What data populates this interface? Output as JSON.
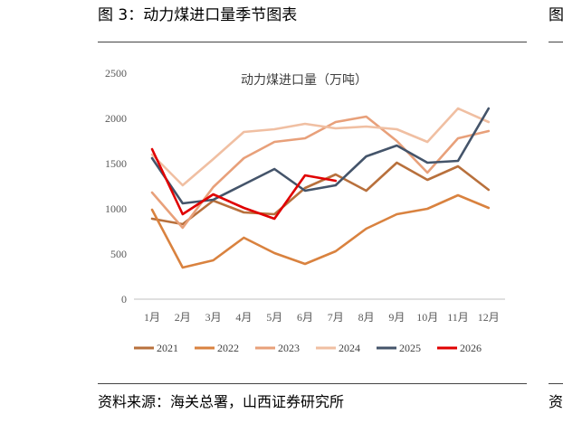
{
  "header": {
    "figure_title": "图 3：动力煤进口量季节图表",
    "next_figure_fragment": "图"
  },
  "footer": {
    "source": "资料来源：海关总署，山西证券研究所",
    "next_source_fragment": "资"
  },
  "chart_data": {
    "type": "line",
    "title": "动力煤进口量（万吨）",
    "categories": [
      "1月",
      "2月",
      "3月",
      "4月",
      "5月",
      "6月",
      "7月",
      "8月",
      "9月",
      "10月",
      "11月",
      "12月"
    ],
    "ylim": [
      0,
      2500
    ],
    "yticks": [
      0,
      500,
      1000,
      1500,
      2000,
      2500
    ],
    "grid": false,
    "legend_position": "bottom",
    "series": [
      {
        "name": "2021",
        "color": "#b8703c",
        "values": [
          890,
          830,
          1090,
          960,
          940,
          1230,
          1380,
          1200,
          1510,
          1320,
          1470,
          1210
        ]
      },
      {
        "name": "2022",
        "color": "#d9823f",
        "values": [
          990,
          350,
          430,
          680,
          510,
          390,
          530,
          780,
          940,
          1000,
          1150,
          1010
        ]
      },
      {
        "name": "2023",
        "color": "#e8a07a",
        "values": [
          1180,
          790,
          1240,
          1560,
          1740,
          1780,
          1960,
          2020,
          1750,
          1400,
          1780,
          1860
        ]
      },
      {
        "name": "2024",
        "color": "#f0bfa2",
        "values": [
          1600,
          1260,
          1550,
          1850,
          1880,
          1940,
          1890,
          1910,
          1880,
          1740,
          2110,
          1960
        ]
      },
      {
        "name": "2025",
        "color": "#44546a",
        "values": [
          1560,
          1060,
          1100,
          1270,
          1440,
          1200,
          1260,
          1580,
          1700,
          1510,
          1530,
          2110
        ]
      },
      {
        "name": "2026",
        "color": "#e00000",
        "values": [
          1660,
          940,
          1160,
          1010,
          890,
          1370,
          1310,
          null,
          null,
          null,
          null,
          null
        ]
      }
    ]
  }
}
